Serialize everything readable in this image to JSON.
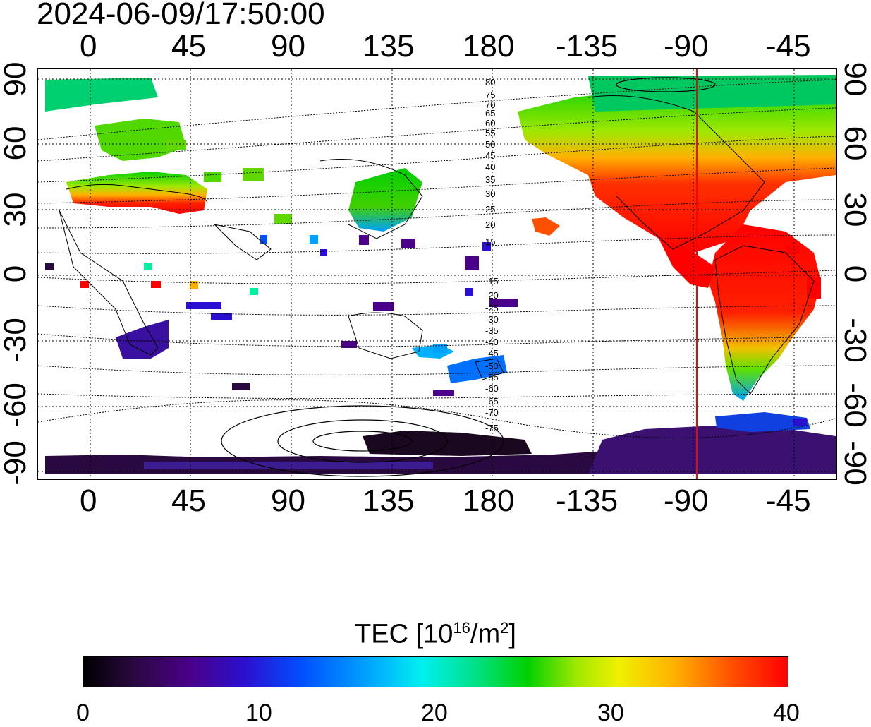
{
  "title": "2024-06-09/17:50:00",
  "top_axis_labels": [
    "0",
    "45",
    "90",
    "135",
    "180",
    "-135",
    "-90",
    "-45"
  ],
  "bottom_axis_labels": [
    "0",
    "45",
    "90",
    "135",
    "180",
    "-135",
    "-90",
    "-45"
  ],
  "left_axis_labels": [
    "90",
    "60",
    "30",
    "0",
    "-30",
    "-60",
    "-90"
  ],
  "right_axis_labels": [
    "90",
    "60",
    "30",
    "0",
    "-30",
    "-60",
    "-90"
  ],
  "contour_labels": [
    "80",
    "75",
    "70",
    "65",
    "60",
    "55",
    "50",
    "45",
    "40",
    "35",
    "30",
    "25",
    "20",
    "15",
    "-15",
    "-20",
    "-25",
    "-30",
    "-35",
    "-40",
    "-45",
    "-50",
    "-55",
    "-60",
    "-65",
    "-70",
    "-75"
  ],
  "colorbar": {
    "title_prefix": "TEC  [10",
    "title_exp": "16",
    "title_mid": "/m",
    "title_exp2": "2",
    "title_suffix": "]",
    "ticks": [
      "0",
      "10",
      "20",
      "30",
      "40"
    ],
    "colors": [
      "#000000",
      "#4a0088",
      "#0050ff",
      "#00f0f0",
      "#00d000",
      "#f0f000",
      "#ff5000",
      "#ff0000"
    ]
  },
  "marker_line_color": "#ff0000"
}
